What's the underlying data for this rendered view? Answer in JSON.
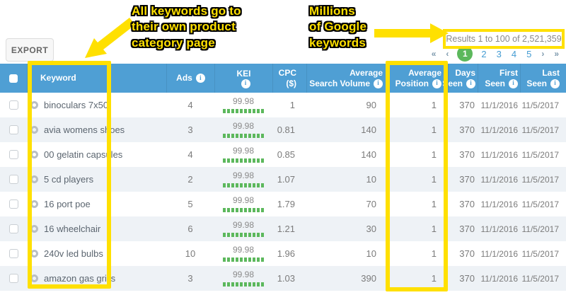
{
  "toolbar": {
    "export_label": "EXPORT"
  },
  "annotations": {
    "left_note_lines": [
      "All keywords go to",
      "their own product",
      "category page"
    ],
    "right_note_lines": [
      "Millions",
      "of Google",
      "keywords"
    ],
    "highlight_color": "#ffe000"
  },
  "results": {
    "summary": "Results 1 to 100 of 2,521,359"
  },
  "pagination": {
    "first_label": "«",
    "prev_label": "‹",
    "pages": [
      "1",
      "2",
      "3",
      "4",
      "5"
    ],
    "active_page": "1",
    "next_label": "›",
    "last_label": "»"
  },
  "table": {
    "headers": {
      "keyword": "Keyword",
      "ads": "Ads",
      "kei": "KEI",
      "cpc_line1": "CPC",
      "cpc_line2": "($)",
      "volume_line1": "Average",
      "volume_line2": "Search Volume",
      "position_line1": "Average",
      "position_line2": "Position",
      "days_line1": "Days",
      "days_line2": "Seen",
      "first_line1": "First",
      "first_line2": "Seen",
      "last_line1": "Last",
      "last_line2": "Seen"
    },
    "info_icon_glyph": "i",
    "rows": [
      {
        "keyword": "binoculars 7x50",
        "ads": "4",
        "kei": "99.98",
        "cpc": "1",
        "volume": "90",
        "position": "1",
        "days_seen": "370",
        "first_seen": "11/1/2016",
        "last_seen": "11/5/2017"
      },
      {
        "keyword": "avia womens shoes",
        "ads": "3",
        "kei": "99.98",
        "cpc": "0.81",
        "volume": "140",
        "position": "1",
        "days_seen": "370",
        "first_seen": "11/1/2016",
        "last_seen": "11/5/2017"
      },
      {
        "keyword": "00 gelatin capsules",
        "ads": "4",
        "kei": "99.98",
        "cpc": "0.85",
        "volume": "140",
        "position": "1",
        "days_seen": "370",
        "first_seen": "11/1/2016",
        "last_seen": "11/5/2017"
      },
      {
        "keyword": "5 cd players",
        "ads": "2",
        "kei": "99.98",
        "cpc": "1.07",
        "volume": "10",
        "position": "1",
        "days_seen": "370",
        "first_seen": "11/1/2016",
        "last_seen": "11/5/2017"
      },
      {
        "keyword": "16 port poe",
        "ads": "5",
        "kei": "99.98",
        "cpc": "1.79",
        "volume": "70",
        "position": "1",
        "days_seen": "370",
        "first_seen": "11/1/2016",
        "last_seen": "11/5/2017"
      },
      {
        "keyword": "16 wheelchair",
        "ads": "6",
        "kei": "99.98",
        "cpc": "1.21",
        "volume": "30",
        "position": "1",
        "days_seen": "370",
        "first_seen": "11/1/2016",
        "last_seen": "11/5/2017"
      },
      {
        "keyword": "240v led bulbs",
        "ads": "10",
        "kei": "99.98",
        "cpc": "1.96",
        "volume": "10",
        "position": "1",
        "days_seen": "370",
        "first_seen": "11/1/2016",
        "last_seen": "11/5/2017"
      },
      {
        "keyword": "amazon gas grills",
        "ads": "3",
        "kei": "99.98",
        "cpc": "1.03",
        "volume": "390",
        "position": "1",
        "days_seen": "370",
        "first_seen": "11/1/2016",
        "last_seen": "11/5/2017"
      }
    ]
  },
  "colors": {
    "header_blue": "#4f9fd4",
    "kei_green": "#5cb85c",
    "active_page_green": "#5cb85c",
    "annotation_yellow": "#ffe000",
    "row_alt": "#eef2f6",
    "pagination_blue": "#459cd2"
  }
}
